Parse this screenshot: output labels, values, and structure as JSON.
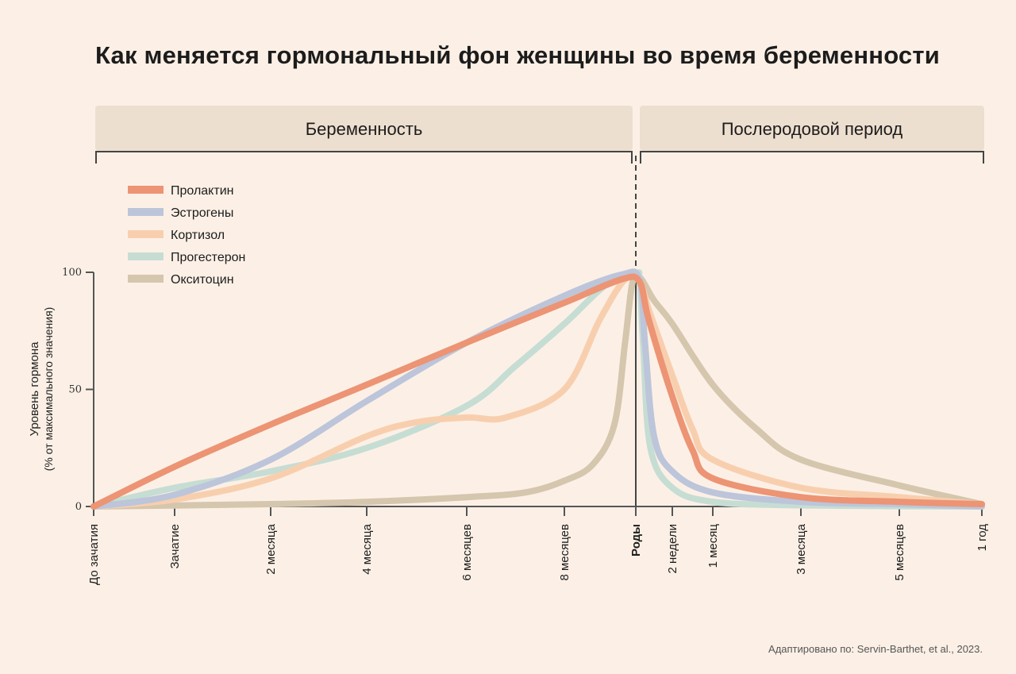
{
  "title": "Как меняется гормональный фон женщины во время беременности",
  "source": "Адаптировано по: Servin-Barthet, et al., 2023.",
  "chart_data": {
    "type": "line",
    "title": "Как меняется гормональный фон женщины во время беременности",
    "periods": [
      "Беременность",
      "Послеродовой период"
    ],
    "ylabel": "Уровень гормона",
    "ylabel_sub": "(% от максимального значения)",
    "ylim": [
      0,
      100
    ],
    "yticks": [
      "0",
      "50",
      "100"
    ],
    "xticks": [
      "До зачатия",
      "Зачатие",
      "2 месяца",
      "4 месяца",
      "6 месяцев",
      "8 месяцев",
      "Роды",
      "2 недели",
      "1 месяц",
      "3 месяца",
      "5 месяцев",
      "1 год"
    ],
    "x_note": "x values are tick indices (0 = До зачатия … 11 = 1 год)",
    "legend_position": "top-left",
    "series": [
      {
        "name": "Пролактин",
        "color": "#ec9474",
        "points": [
          [
            0,
            0
          ],
          [
            1,
            17
          ],
          [
            2,
            35
          ],
          [
            3,
            52
          ],
          [
            4,
            70
          ],
          [
            5,
            87
          ],
          [
            5.8,
            97
          ],
          [
            6.1,
            96
          ],
          [
            6.35,
            80
          ],
          [
            7,
            47
          ],
          [
            7.5,
            24
          ],
          [
            8,
            12
          ],
          [
            9,
            4
          ],
          [
            10,
            2
          ],
          [
            11,
            1
          ]
        ]
      },
      {
        "name": "Эстрогены",
        "color": "#bcc5da",
        "points": [
          [
            0,
            0
          ],
          [
            1,
            5
          ],
          [
            2,
            20
          ],
          [
            3,
            45
          ],
          [
            4,
            70
          ],
          [
            5,
            90
          ],
          [
            5.8,
            99
          ],
          [
            6.1,
            97
          ],
          [
            6.25,
            70
          ],
          [
            6.5,
            30
          ],
          [
            7,
            15
          ],
          [
            8,
            6
          ],
          [
            9,
            2
          ],
          [
            10,
            1
          ],
          [
            11,
            0
          ]
        ]
      },
      {
        "name": "Кортизол",
        "color": "#f8cfae",
        "points": [
          [
            0,
            0
          ],
          [
            1,
            3
          ],
          [
            2,
            12
          ],
          [
            3,
            30
          ],
          [
            3.5,
            36
          ],
          [
            4,
            38
          ],
          [
            4.4,
            38
          ],
          [
            5,
            50
          ],
          [
            5.5,
            80
          ],
          [
            5.85,
            97
          ],
          [
            6.1,
            96
          ],
          [
            6.4,
            82
          ],
          [
            7,
            56
          ],
          [
            7.5,
            33
          ],
          [
            8,
            20
          ],
          [
            9,
            8
          ],
          [
            10,
            4
          ],
          [
            11,
            1
          ]
        ]
      },
      {
        "name": "Прогестерон",
        "color": "#c6ddd3",
        "points": [
          [
            0,
            0
          ],
          [
            1,
            8
          ],
          [
            2,
            15
          ],
          [
            3,
            25
          ],
          [
            4,
            43
          ],
          [
            4.5,
            60
          ],
          [
            5,
            78
          ],
          [
            5.6,
            95
          ],
          [
            6,
            99
          ],
          [
            6.1,
            97
          ],
          [
            6.2,
            70
          ],
          [
            6.4,
            25
          ],
          [
            7,
            8
          ],
          [
            8,
            2
          ],
          [
            9,
            0.5
          ],
          [
            11,
            0
          ]
        ]
      },
      {
        "name": "Окситоцин",
        "color": "#d5c6ae",
        "points": [
          [
            0,
            0
          ],
          [
            2,
            1
          ],
          [
            3,
            2
          ],
          [
            4,
            4
          ],
          [
            4.6,
            6
          ],
          [
            5,
            11
          ],
          [
            5.4,
            18
          ],
          [
            5.7,
            35
          ],
          [
            5.85,
            70
          ],
          [
            5.95,
            95
          ],
          [
            6.1,
            98
          ],
          [
            6.5,
            88
          ],
          [
            7,
            78
          ],
          [
            8,
            52
          ],
          [
            8.5,
            33
          ],
          [
            9,
            20
          ],
          [
            10,
            9
          ],
          [
            11,
            1
          ]
        ]
      }
    ]
  }
}
